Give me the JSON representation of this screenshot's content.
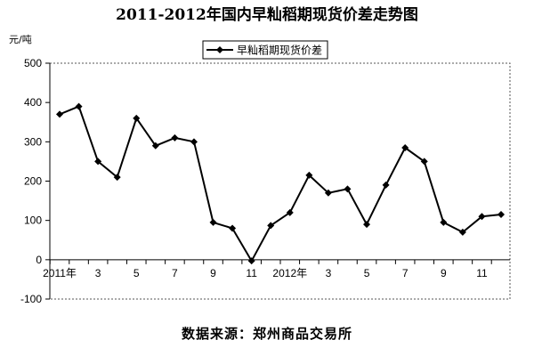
{
  "chart_data": {
    "type": "line",
    "title": "2011-2012年国内早籼稻期现货价差走势图",
    "ylabel": "元/吨",
    "source": "数据来源：郑州商品交易所",
    "legend": {
      "placement": "top-right",
      "entries": [
        "早籼稻期现货价差"
      ]
    },
    "grid": {
      "x": false,
      "y": false
    },
    "ylim": [
      -100,
      500
    ],
    "yticks": [
      -100,
      0,
      100,
      200,
      300,
      400,
      500
    ],
    "x_labels": [
      "2011年",
      "",
      "3",
      "",
      "5",
      "",
      "7",
      "",
      "9",
      "",
      "11",
      "",
      "2012年",
      "",
      "3",
      "",
      "5",
      "",
      "7",
      "",
      "9",
      "",
      "11",
      ""
    ],
    "series": [
      {
        "name": "早籼稻期现货价差",
        "color": "#000000",
        "marker": "diamond",
        "values": [
          370,
          390,
          250,
          210,
          360,
          290,
          310,
          300,
          95,
          80,
          -3,
          87,
          120,
          215,
          170,
          180,
          90,
          190,
          285,
          250,
          95,
          70,
          110,
          115
        ]
      }
    ]
  }
}
